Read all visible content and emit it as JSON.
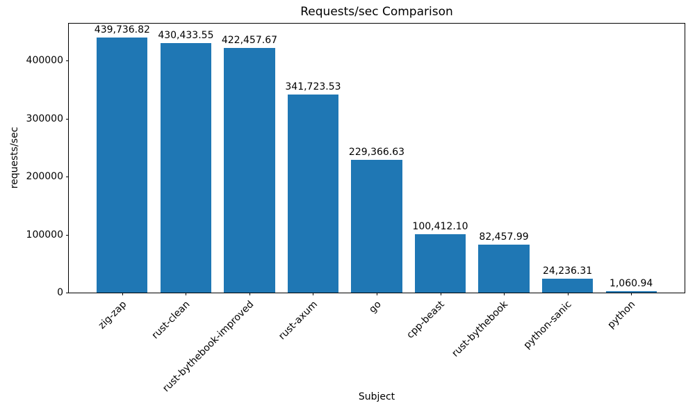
{
  "chart_data": {
    "type": "bar",
    "title": "Requests/sec Comparison",
    "xlabel": "Subject",
    "ylabel": "requests/sec",
    "categories": [
      "zig-zap",
      "rust-clean",
      "rust-bythebook-improved",
      "rust-axum",
      "go",
      "cpp-beast",
      "rust-bythebook",
      "python-sanic",
      "python"
    ],
    "values": [
      439736.82,
      430433.55,
      422457.67,
      341723.53,
      229366.63,
      100412.1,
      82457.99,
      24236.31,
      1060.94
    ],
    "value_labels": [
      "439,736.82",
      "430,433.55",
      "422,457.67",
      "341,723.53",
      "229,366.63",
      "100,412.10",
      "82,457.99",
      "24,236.31",
      "1,060.94"
    ],
    "y_ticks": [
      0,
      100000,
      200000,
      300000,
      400000
    ],
    "y_tick_labels": [
      "0",
      "100000",
      "200000",
      "300000",
      "400000"
    ],
    "ylim": [
      0,
      464000
    ],
    "bar_color": "#1f77b4",
    "grid": false,
    "legend_position": "none"
  }
}
